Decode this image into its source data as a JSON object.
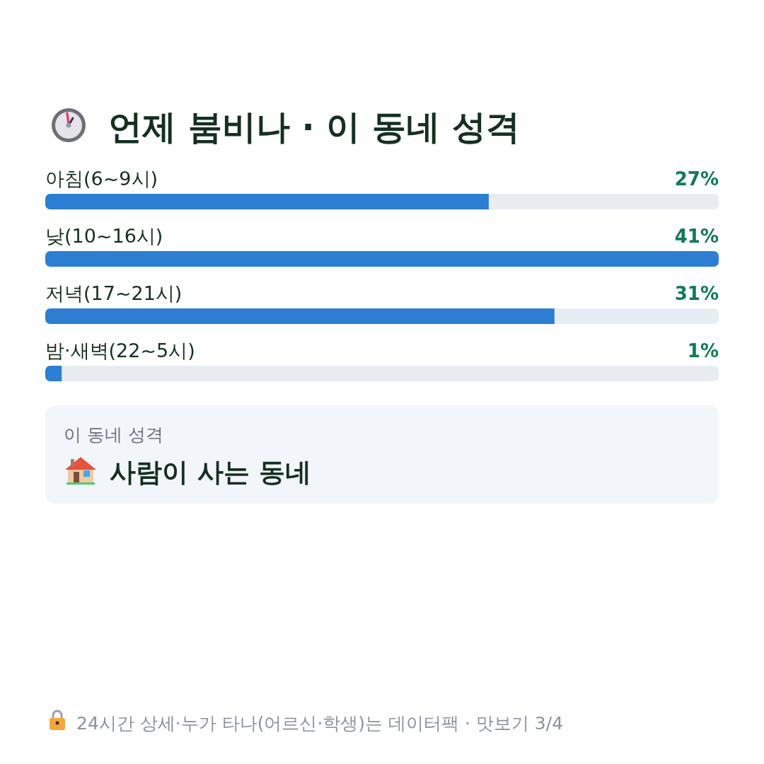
{
  "chart_data": {
    "type": "bar",
    "orientation": "horizontal",
    "title": "언제 붐비나 · 이 동네 성격",
    "categories": [
      "아침(6~9시)",
      "낮(10~16시)",
      "저녁(17~21시)",
      "밤·새벽(22~5시)"
    ],
    "values": [
      27,
      41,
      31,
      1
    ],
    "value_labels": [
      "27%",
      "41%",
      "31%",
      "1%"
    ],
    "color": "#2d7dd2",
    "annotations": [
      "이 동네 성격",
      "사람이 사는 동네",
      "24시간 상세·누가 타나(어르신·학생)는 데이터팩 · 맛보기 3/4"
    ]
  }
}
